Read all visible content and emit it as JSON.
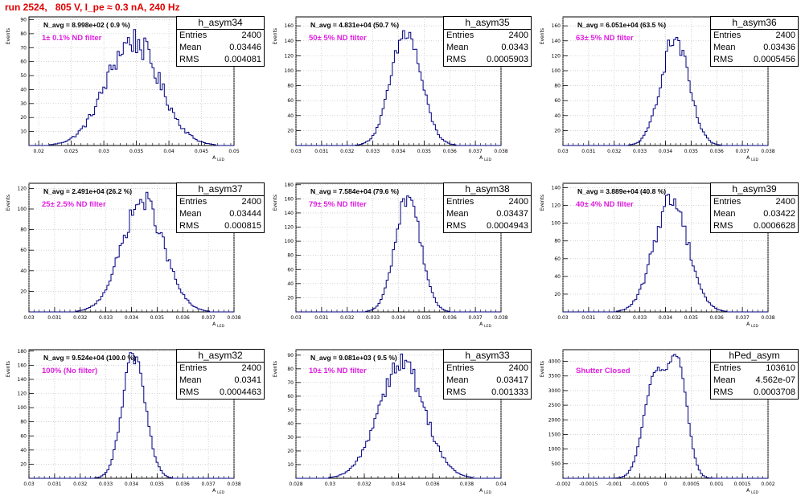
{
  "page": {
    "run_title": "run 2524,   805 V, I_pe ≈ 0.3 nA, 240 Hz"
  },
  "chart_data": [
    {
      "type": "histogram",
      "name": "h_asym34",
      "navg": "N_avg = 8.998e+02 ( 0.9 %)",
      "filter": "1± 0.1% ND filter",
      "entries": "2400",
      "mean": "0.03446",
      "rms": "0.004081",
      "xlim": [
        0.0185,
        0.05
      ],
      "ylim": [
        0,
        92
      ],
      "xticks": [
        "0.02",
        "0.025",
        "0.03",
        "0.035",
        "0.04",
        "0.045",
        "0.05"
      ],
      "xtick_values": [
        0.02,
        0.025,
        0.03,
        0.035,
        0.04,
        0.045,
        0.05
      ],
      "yticks": [
        "10",
        "20",
        "30",
        "40",
        "50",
        "60",
        "70",
        "80",
        "90"
      ],
      "ytick_values": [
        10,
        20,
        30,
        40,
        50,
        60,
        70,
        80,
        90
      ],
      "xlabel": "A",
      "xlabel_sub": "LED",
      "ylabel": "Events",
      "peaks": [
        {
          "mu": 0.03446,
          "sigma": 0.004081,
          "amp": 75
        }
      ],
      "noise": 0.14
    },
    {
      "type": "histogram",
      "name": "h_asym35",
      "navg": "N_avg = 4.831e+04 (50.7 %)",
      "filter": "50± 5% ND filter",
      "entries": "2400",
      "mean": "0.0343",
      "rms": "0.0005903",
      "xlim": [
        0.03,
        0.038
      ],
      "ylim": [
        0,
        172
      ],
      "xticks": [
        "0.03",
        "0.031",
        "0.032",
        "0.033",
        "0.034",
        "0.035",
        "0.036",
        "0.037",
        "0.038"
      ],
      "xtick_values": [
        0.03,
        0.031,
        0.032,
        0.033,
        0.034,
        0.035,
        0.036,
        0.037,
        0.038
      ],
      "yticks": [
        "20",
        "40",
        "60",
        "80",
        "100",
        "120",
        "140",
        "160"
      ],
      "ytick_values": [
        20,
        40,
        60,
        80,
        100,
        120,
        140,
        160
      ],
      "xlabel": "A",
      "xlabel_sub": "LED",
      "ylabel": "Events",
      "peaks": [
        {
          "mu": 0.0343,
          "sigma": 0.0005903,
          "amp": 150
        }
      ],
      "noise": 0.1
    },
    {
      "type": "histogram",
      "name": "h_asym36",
      "navg": "N_avg = 6.051e+04 (63.5 %)",
      "filter": "63± 5% ND filter",
      "entries": "2400",
      "mean": "0.03436",
      "rms": "0.0005456",
      "xlim": [
        0.03,
        0.038
      ],
      "ylim": [
        0,
        172
      ],
      "xticks": [
        "0.03",
        "0.031",
        "0.032",
        "0.033",
        "0.034",
        "0.035",
        "0.036",
        "0.037",
        "0.038"
      ],
      "xtick_values": [
        0.03,
        0.031,
        0.032,
        0.033,
        0.034,
        0.035,
        0.036,
        0.037,
        0.038
      ],
      "yticks": [
        "20",
        "40",
        "60",
        "80",
        "100",
        "120",
        "140",
        "160"
      ],
      "ytick_values": [
        20,
        40,
        60,
        80,
        100,
        120,
        140,
        160
      ],
      "xlabel": "A",
      "xlabel_sub": "LED",
      "ylabel": "Events",
      "peaks": [
        {
          "mu": 0.03436,
          "sigma": 0.0005456,
          "amp": 142
        }
      ],
      "noise": 0.1
    },
    {
      "type": "histogram",
      "name": "h_asym37",
      "navg": "N_avg = 2.491e+04 (26.2 %)",
      "filter": "25± 2.5% ND filter",
      "entries": "2400",
      "mean": "0.03444",
      "rms": "0.000815",
      "xlim": [
        0.03,
        0.038
      ],
      "ylim": [
        0,
        125
      ],
      "xticks": [
        "0.03",
        "0.031",
        "0.032",
        "0.033",
        "0.034",
        "0.035",
        "0.036",
        "0.037",
        "0.038"
      ],
      "xtick_values": [
        0.03,
        0.031,
        0.032,
        0.033,
        0.034,
        0.035,
        0.036,
        0.037,
        0.038
      ],
      "yticks": [
        "20",
        "40",
        "60",
        "80",
        "100",
        "120"
      ],
      "ytick_values": [
        20,
        40,
        60,
        80,
        100,
        120
      ],
      "xlabel": "A",
      "xlabel_sub": "LED",
      "ylabel": "Events",
      "peaks": [
        {
          "mu": 0.03444,
          "sigma": 0.000815,
          "amp": 108
        }
      ],
      "noise": 0.1
    },
    {
      "type": "histogram",
      "name": "h_asym38",
      "navg": "N_avg = 7.584e+04 (79.6 %)",
      "filter": "79± 5% ND filter",
      "entries": "2400",
      "mean": "0.03437",
      "rms": "0.0004943",
      "xlim": [
        0.03,
        0.038
      ],
      "ylim": [
        0,
        182
      ],
      "xticks": [
        "0.03",
        "0.031",
        "0.032",
        "0.033",
        "0.034",
        "0.035",
        "0.036",
        "0.037",
        "0.038"
      ],
      "xtick_values": [
        0.03,
        0.031,
        0.032,
        0.033,
        0.034,
        0.035,
        0.036,
        0.037,
        0.038
      ],
      "yticks": [
        "20",
        "40",
        "60",
        "80",
        "100",
        "120",
        "140",
        "160",
        "180"
      ],
      "ytick_values": [
        20,
        40,
        60,
        80,
        100,
        120,
        140,
        160,
        180
      ],
      "xlabel": "A",
      "xlabel_sub": "LED",
      "ylabel": "Events",
      "peaks": [
        {
          "mu": 0.03437,
          "sigma": 0.0004943,
          "amp": 165
        }
      ],
      "noise": 0.08
    },
    {
      "type": "histogram",
      "name": "h_asym39",
      "navg": "N_avg = 3.889e+04 (40.8 %)",
      "filter": "40± 4% ND filter",
      "entries": "2400",
      "mean": "0.03422",
      "rms": "0.0006628",
      "xlim": [
        0.03,
        0.038
      ],
      "ylim": [
        0,
        145
      ],
      "xticks": [
        "0.03",
        "0.031",
        "0.032",
        "0.033",
        "0.034",
        "0.035",
        "0.036",
        "0.037",
        "0.038"
      ],
      "xtick_values": [
        0.03,
        0.031,
        0.032,
        0.033,
        0.034,
        0.035,
        0.036,
        0.037,
        0.038
      ],
      "yticks": [
        "20",
        "40",
        "60",
        "80",
        "100",
        "120",
        "140"
      ],
      "ytick_values": [
        20,
        40,
        60,
        80,
        100,
        120,
        140
      ],
      "xlabel": "A",
      "xlabel_sub": "LED",
      "ylabel": "Events",
      "peaks": [
        {
          "mu": 0.03422,
          "sigma": 0.0006628,
          "amp": 128
        }
      ],
      "noise": 0.1
    },
    {
      "type": "histogram",
      "name": "h_asym32",
      "navg": "N_avg = 9.524e+04 (100.0 %)",
      "filter": "100% (No filter)",
      "entries": "2400",
      "mean": "0.0341",
      "rms": "0.0004463",
      "xlim": [
        0.03,
        0.038
      ],
      "ylim": [
        0,
        182
      ],
      "xticks": [
        "0.03",
        "0.031",
        "0.032",
        "0.033",
        "0.034",
        "0.035",
        "0.036",
        "0.037",
        "0.038"
      ],
      "xtick_values": [
        0.03,
        0.031,
        0.032,
        0.033,
        0.034,
        0.035,
        0.036,
        0.037,
        0.038
      ],
      "yticks": [
        "20",
        "40",
        "60",
        "80",
        "100",
        "120",
        "140",
        "160",
        "180"
      ],
      "ytick_values": [
        20,
        40,
        60,
        80,
        100,
        120,
        140,
        160,
        180
      ],
      "xlabel": "A",
      "xlabel_sub": "LED",
      "ylabel": "Events",
      "peaks": [
        {
          "mu": 0.0341,
          "sigma": 0.0004463,
          "amp": 175
        }
      ],
      "noise": 0.08
    },
    {
      "type": "histogram",
      "name": "h_asym33",
      "navg": "N_avg = 9.081e+03 ( 9.5 %)",
      "filter": "10± 1% ND filter",
      "entries": "2400",
      "mean": "0.03417",
      "rms": "0.001333",
      "xlim": [
        0.028,
        0.04
      ],
      "ylim": [
        0,
        94
      ],
      "xticks": [
        "0.028",
        "0.03",
        "0.032",
        "0.034",
        "0.036",
        "0.038",
        "0.04"
      ],
      "xtick_values": [
        0.028,
        0.03,
        0.032,
        0.034,
        0.036,
        0.038,
        0.04
      ],
      "yticks": [
        "10",
        "20",
        "30",
        "40",
        "50",
        "60",
        "70",
        "80",
        "90"
      ],
      "ytick_values": [
        10,
        20,
        30,
        40,
        50,
        60,
        70,
        80,
        90
      ],
      "xlabel": "A",
      "xlabel_sub": "LED",
      "ylabel": "Events",
      "peaks": [
        {
          "mu": 0.03417,
          "sigma": 0.001333,
          "amp": 85
        }
      ],
      "noise": 0.1
    },
    {
      "type": "histogram",
      "name": "hPed_asym",
      "navg": "",
      "filter": "Shutter Closed",
      "entries": "103610",
      "mean": "4.562e-07",
      "rms": "0.0003708",
      "xlim": [
        -0.002,
        0.002
      ],
      "ylim": [
        0,
        4400
      ],
      "xticks": [
        "-0.002",
        "-0.0015",
        "-0.001",
        "-0.0005",
        "0",
        "0.0005",
        "0.001",
        "0.0015",
        "0.002"
      ],
      "xtick_values": [
        -0.002,
        -0.0015,
        -0.001,
        -0.0005,
        0,
        0.0005,
        0.001,
        0.0015,
        0.002
      ],
      "yticks": [
        "500",
        "1000",
        "1500",
        "2000",
        "2500",
        "3000",
        "3500",
        "4000"
      ],
      "ytick_values": [
        500,
        1000,
        1500,
        2000,
        2500,
        3000,
        3500,
        4000
      ],
      "xlabel": "A",
      "xlabel_sub": "LED",
      "ylabel": "Events",
      "peaks": [
        {
          "mu": -0.0002,
          "sigma": 0.00022,
          "amp": 3500
        },
        {
          "mu": 0.00025,
          "sigma": 0.00018,
          "amp": 3700
        }
      ],
      "noise": 0.02
    }
  ]
}
